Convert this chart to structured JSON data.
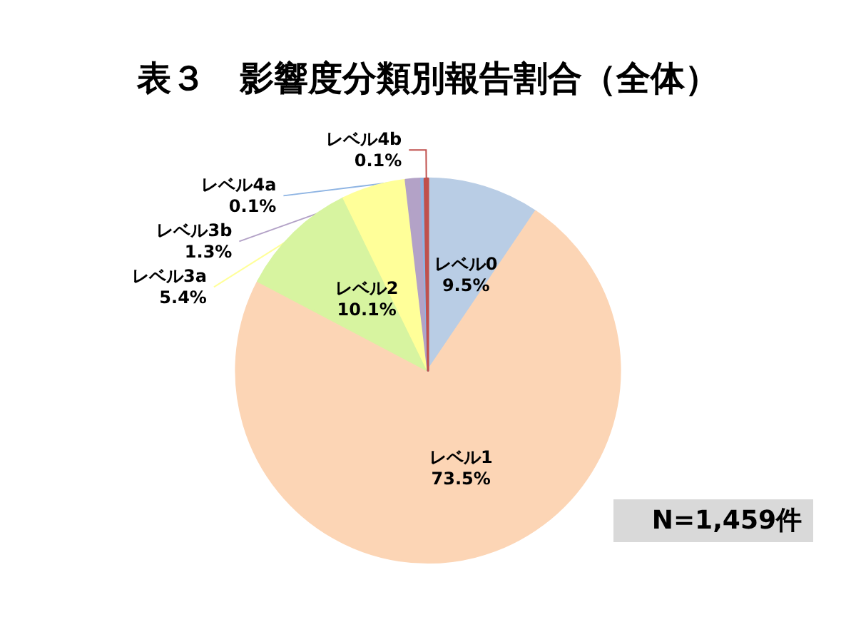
{
  "chart_data": {
    "type": "pie",
    "title": "表３　影響度分類別報告割合（全体）",
    "categories": [
      "レベル0",
      "レベル1",
      "レベル2",
      "レベル3a",
      "レベル3b",
      "レベル4a",
      "レベル4b"
    ],
    "values": [
      9.5,
      73.5,
      10.1,
      5.4,
      1.3,
      0.1,
      0.1
    ],
    "value_labels": [
      "9.5%",
      "73.5%",
      "10.1%",
      "5.4%",
      "1.3%",
      "0.1%",
      "0.1%"
    ],
    "colors": [
      "#b9cde5",
      "#fcd5b5",
      "#d7f4a0",
      "#ffff99",
      "#b3a2c7",
      "#8eb4e3",
      "#c0504d"
    ],
    "annotations": [
      "N=1,459件"
    ],
    "legend": false
  }
}
